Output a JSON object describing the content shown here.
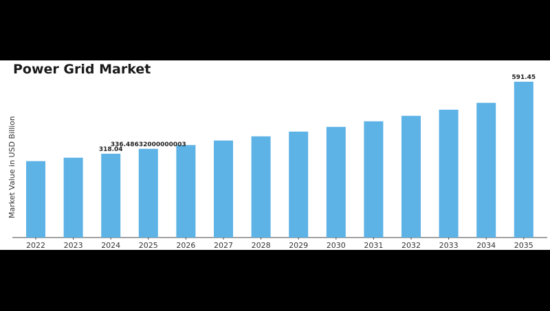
{
  "title": "Power Grid Market",
  "chart_data": {
    "type": "bar",
    "title": "Power Grid Market",
    "xlabel": "",
    "ylabel": "Market Value in USD Billion",
    "categories": [
      "2022",
      "2023",
      "2024",
      "2025",
      "2026",
      "2027",
      "2028",
      "2029",
      "2030",
      "2031",
      "2032",
      "2033",
      "2034",
      "2035"
    ],
    "values": [
      290,
      303,
      318.04,
      336.48632000000003,
      351,
      368,
      384,
      402,
      420,
      441,
      462,
      485,
      511,
      591.45
    ],
    "data_labels": [
      {
        "index": 2,
        "text": "318.04"
      },
      {
        "index": 3,
        "text": "336.48632000000003"
      },
      {
        "index": 13,
        "text": "591.45"
      }
    ],
    "ylim": [
      0,
      620
    ],
    "grid": false,
    "legend": "none",
    "bar_color": "#5db2e6"
  }
}
